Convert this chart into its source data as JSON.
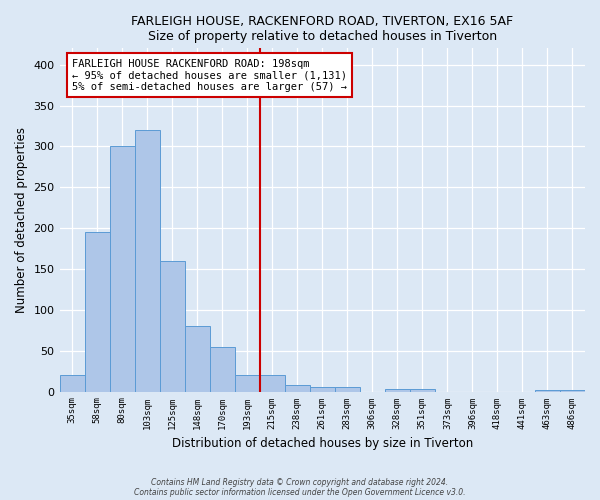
{
  "title": "FARLEIGH HOUSE, RACKENFORD ROAD, TIVERTON, EX16 5AF",
  "subtitle": "Size of property relative to detached houses in Tiverton",
  "xlabel": "Distribution of detached houses by size in Tiverton",
  "ylabel": "Number of detached properties",
  "bin_labels": [
    "35sqm",
    "58sqm",
    "80sqm",
    "103sqm",
    "125sqm",
    "148sqm",
    "170sqm",
    "193sqm",
    "215sqm",
    "238sqm",
    "261sqm",
    "283sqm",
    "306sqm",
    "328sqm",
    "351sqm",
    "373sqm",
    "396sqm",
    "418sqm",
    "441sqm",
    "463sqm",
    "486sqm"
  ],
  "bar_heights": [
    20,
    195,
    300,
    320,
    160,
    80,
    55,
    20,
    20,
    8,
    5,
    5,
    0,
    3,
    3,
    0,
    0,
    0,
    0,
    2,
    2
  ],
  "property_line_index": 7,
  "bar_color": "#aec6e8",
  "bar_edge_color": "#5b9bd5",
  "line_color": "#cc0000",
  "background_color": "#dce8f5",
  "annotation_text": "FARLEIGH HOUSE RACKENFORD ROAD: 198sqm\n← 95% of detached houses are smaller (1,131)\n5% of semi-detached houses are larger (57) →",
  "annotation_box_color": "#ffffff",
  "annotation_box_edge": "#cc0000",
  "footer1": "Contains HM Land Registry data © Crown copyright and database right 2024.",
  "footer2": "Contains public sector information licensed under the Open Government Licence v3.0.",
  "ylim": [
    0,
    420
  ],
  "yticks": [
    0,
    50,
    100,
    150,
    200,
    250,
    300,
    350,
    400
  ]
}
